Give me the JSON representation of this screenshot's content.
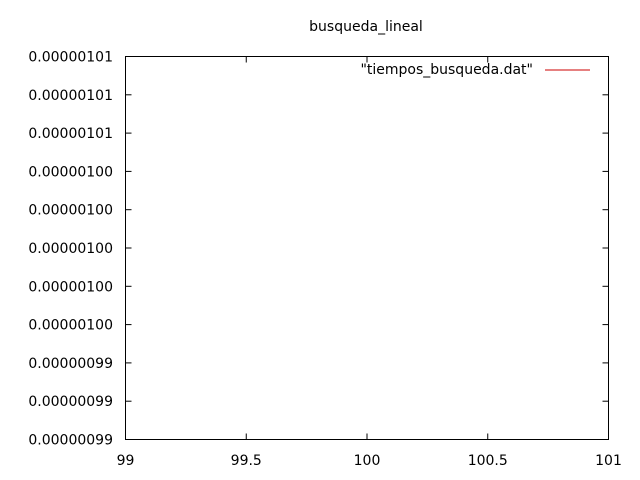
{
  "chart_data": {
    "type": "line",
    "title": "busqueda_lineal",
    "xlabel": "",
    "ylabel": "",
    "xlim": [
      99,
      101
    ],
    "x_ticks": [
      99,
      99.5,
      100,
      100.5,
      101
    ],
    "x_tick_labels": [
      "99",
      "99.5",
      "100",
      "100.5",
      "101"
    ],
    "y_tick_labels": [
      "0.00000101",
      "0.00000101",
      "0.00000101",
      "0.00000100",
      "0.00000100",
      "0.00000100",
      "0.00000100",
      "0.00000100",
      "0.00000099",
      "0.00000099",
      "0.00000099"
    ],
    "grid": false,
    "legend_position": "top-right",
    "series": [
      {
        "name": "\"tiempos_busqueda.dat\"",
        "color": "#cc0000",
        "x": [],
        "y": []
      }
    ]
  }
}
